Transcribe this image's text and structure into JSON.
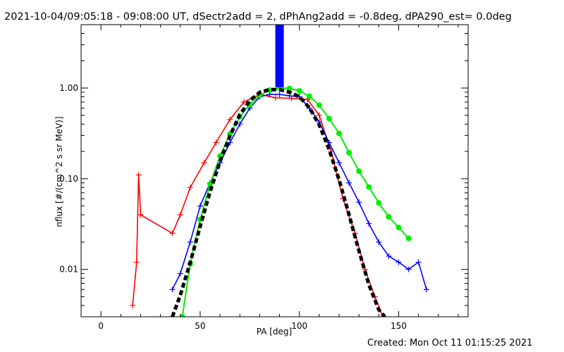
{
  "title": "2021-10-04/09:05:18 - 09:08:00 UT, dSectr2add = 2, dPhAng2add = -0.8deg, dPA290_est=  0.0deg",
  "footer": "Created: Mon Oct 11 01:15:25 2021",
  "colors": {
    "background": "#ffffff",
    "axes": "#000000",
    "red_series": "#ff0000",
    "blue_series": "#0000ff",
    "green_fit": "#00ee00",
    "black_fit": "#000000"
  },
  "chart_data": {
    "type": "line",
    "title": "2021-10-04/09:05:18 - 09:08:00 UT, dSectr2add = 2, dPhAng2add = -0.8deg, dPA290_est=  0.0deg",
    "xlabel": "PA [deg]",
    "ylabel": "nflux [#/(cm^2 s sr MeV)]",
    "xlim": [
      -10,
      185
    ],
    "ylim": [
      0.003,
      5
    ],
    "yscale": "log",
    "grid": false,
    "legend": "none",
    "x_ticks": [
      0,
      50,
      100,
      150
    ],
    "x_tick_labels": [
      "0",
      "50",
      "100",
      "150"
    ],
    "y_ticks": [
      0.01,
      0.1,
      1.0
    ],
    "y_tick_labels": [
      "0.01",
      "0.10",
      "1.00"
    ],
    "series": [
      {
        "style": "red-line-plus",
        "color": "#ff0000",
        "x": [
          16,
          18,
          19,
          20,
          36,
          40,
          45,
          52,
          58,
          65,
          72,
          80,
          88,
          96,
          104,
          110,
          116,
          122,
          128,
          133,
          138,
          142
        ],
        "y": [
          0.004,
          0.012,
          0.11,
          0.04,
          0.025,
          0.04,
          0.08,
          0.15,
          0.25,
          0.45,
          0.7,
          0.85,
          0.78,
          0.77,
          0.75,
          0.5,
          0.2,
          0.06,
          0.025,
          0.01,
          0.005,
          0.003
        ]
      },
      {
        "style": "blue-line-plus",
        "color": "#0000ff",
        "x": [
          36,
          40,
          45,
          50,
          55,
          60,
          65,
          70,
          75,
          80,
          85,
          90,
          95,
          100,
          105,
          110,
          115,
          120,
          125,
          130,
          135,
          140,
          145,
          150,
          155,
          160,
          164
        ],
        "y": [
          0.006,
          0.009,
          0.02,
          0.05,
          0.09,
          0.15,
          0.25,
          0.4,
          0.6,
          0.8,
          0.85,
          0.85,
          0.82,
          0.8,
          0.6,
          0.42,
          0.25,
          0.15,
          0.09,
          0.055,
          0.032,
          0.02,
          0.014,
          0.012,
          0.01,
          0.012,
          0.006
        ]
      },
      {
        "style": "green-dots",
        "color": "#00ee00",
        "x": [
          41,
          45,
          50,
          55,
          60,
          65,
          70,
          75,
          80,
          85,
          90,
          95,
          100,
          105,
          110,
          115,
          120,
          125,
          130,
          135,
          140,
          145,
          150,
          155
        ],
        "y": [
          0.003,
          0.0115,
          0.0355,
          0.087,
          0.178,
          0.311,
          0.482,
          0.659,
          0.831,
          0.948,
          1.0,
          0.99,
          0.93,
          0.811,
          0.646,
          0.46,
          0.316,
          0.194,
          0.121,
          0.081,
          0.054,
          0.038,
          0.029,
          0.022
        ]
      },
      {
        "style": "black-dashed-fit",
        "color": "#000000",
        "x": [
          36,
          40,
          45,
          50,
          55,
          60,
          65,
          70,
          75,
          80,
          85,
          90,
          95,
          100,
          105,
          110,
          115,
          120,
          125,
          130,
          135,
          140,
          143
        ],
        "y": [
          0.003,
          0.0052,
          0.0119,
          0.0298,
          0.072,
          0.155,
          0.297,
          0.508,
          0.726,
          0.896,
          0.96,
          0.96,
          0.9,
          0.8,
          0.608,
          0.393,
          0.21,
          0.097,
          0.04,
          0.016,
          0.0068,
          0.0036,
          0.003
        ]
      },
      {
        "style": "blue-vertical-spike",
        "color": "#0000ff",
        "x": [
          90,
          90
        ],
        "y": [
          1.02,
          5
        ]
      }
    ]
  }
}
